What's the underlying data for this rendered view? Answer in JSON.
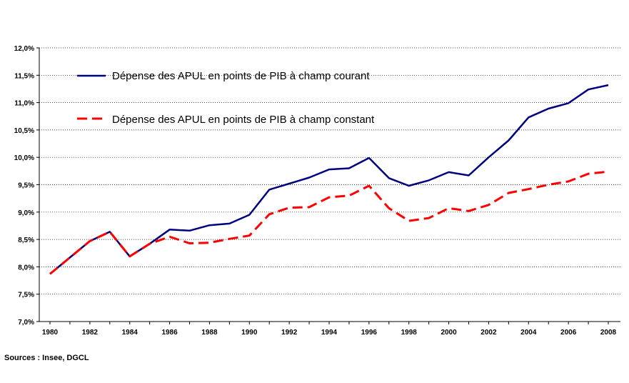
{
  "chart_data": {
    "type": "line",
    "x": [
      1980,
      1981,
      1982,
      1983,
      1984,
      1985,
      1986,
      1987,
      1988,
      1989,
      1990,
      1991,
      1992,
      1993,
      1994,
      1995,
      1996,
      1997,
      1998,
      1999,
      2000,
      2001,
      2002,
      2003,
      2004,
      2005,
      2006,
      2007,
      2008
    ],
    "x_tick_labels": [
      "1980",
      "1982",
      "1984",
      "1986",
      "1988",
      "1990",
      "1992",
      "1994",
      "1996",
      "1998",
      "2000",
      "2002",
      "2004",
      "2006",
      "2008"
    ],
    "y_tick_labels": [
      "7,0%",
      "7,5%",
      "8,0%",
      "8,5%",
      "9,0%",
      "9,5%",
      "10,0%",
      "10,5%",
      "11,0%",
      "11,5%",
      "12,0%"
    ],
    "ylim": [
      7.0,
      12.0
    ],
    "grid": "horizontal dotted",
    "legend_position": "top-left inside",
    "series": [
      {
        "name": "Dépense des APUL en points de PIB à champ courant",
        "color": "#00007f",
        "style": "solid",
        "values": [
          7.87,
          8.17,
          8.47,
          8.64,
          8.19,
          8.42,
          8.68,
          8.66,
          8.76,
          8.79,
          8.95,
          9.41,
          9.52,
          9.63,
          9.78,
          9.8,
          9.99,
          9.62,
          9.48,
          9.58,
          9.73,
          9.67,
          10.0,
          10.31,
          10.73,
          10.89,
          10.99,
          11.24,
          11.32
        ]
      },
      {
        "name": "Dépense des APUL en points de PIB à champ constant",
        "color": "#ff0000",
        "style": "dashed",
        "values": [
          7.87,
          8.17,
          8.47,
          8.64,
          8.19,
          8.42,
          8.55,
          8.43,
          8.44,
          8.51,
          8.57,
          8.96,
          9.08,
          9.09,
          9.27,
          9.3,
          9.48,
          9.07,
          8.84,
          8.89,
          9.07,
          9.02,
          9.13,
          9.35,
          9.42,
          9.5,
          9.56,
          9.7,
          9.74
        ]
      }
    ]
  },
  "source": "Sources : Insee, DGCL"
}
